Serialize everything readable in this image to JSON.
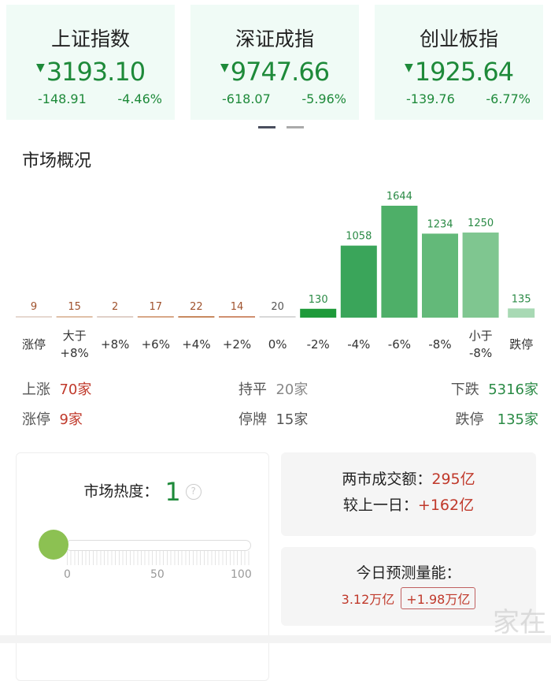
{
  "indices": [
    {
      "name": "上证指数",
      "price": "3193.10",
      "change": "-148.91",
      "pct": "-4.46%",
      "direction": "down"
    },
    {
      "name": "深证成指",
      "price": "9747.66",
      "change": "-618.07",
      "pct": "-5.96%",
      "direction": "down"
    },
    {
      "name": "创业板指",
      "price": "1925.64",
      "change": "-139.76",
      "pct": "-6.77%",
      "direction": "down"
    }
  ],
  "triangle": "▼",
  "section_title": "市场概况",
  "chart_data": {
    "type": "bar",
    "categories": [
      "涨停",
      "大于\n+8%",
      "+8%",
      "+6%",
      "+4%",
      "+2%",
      "0%",
      "-2%",
      "-4%",
      "-6%",
      "-8%",
      "小于\n-8%",
      "跌停"
    ],
    "values": [
      9,
      15,
      2,
      17,
      22,
      14,
      20,
      130,
      1058,
      1644,
      1234,
      1250,
      135
    ],
    "colors": [
      "#e6d8d0",
      "#e0c0a8",
      "#e0d0c8",
      "#d8a888",
      "#c88a60",
      "#d09070",
      "#d8d8d8",
      "#1e9a3a",
      "#3aa55a",
      "#4eaf68",
      "#63b979",
      "#7fc690",
      "#a8d9b4"
    ],
    "label_colors": [
      "#a0522d",
      "#a0522d",
      "#a0522d",
      "#a0522d",
      "#a0522d",
      "#a0522d",
      "#555555",
      "#2a8a45",
      "#2a8a45",
      "#2a8a45",
      "#2a8a45",
      "#2a8a45",
      "#2a8a45"
    ]
  },
  "stats": {
    "up_label": "上涨",
    "up_value": "70家",
    "flat_label": "持平",
    "flat_value": "20家",
    "down_label": "下跌",
    "down_value": "5316家",
    "limit_up_label": "涨停",
    "limit_up_value": "9家",
    "suspended_label": "停牌",
    "suspended_value": "15家",
    "limit_down_label": "跌停",
    "limit_down_value": "135家"
  },
  "heat": {
    "label": "市场热度：",
    "value": "1",
    "help": "?",
    "level": 1,
    "scale": [
      "0",
      "50",
      "100"
    ]
  },
  "turnover": {
    "label": "两市成交额：",
    "value": "295亿",
    "diff_label": "较上一日：",
    "diff_value": "+162亿"
  },
  "forecast": {
    "label": "今日预测量能：",
    "value": "3.12万亿",
    "diff": "+1.98万亿"
  },
  "watermark": "家在深圳"
}
